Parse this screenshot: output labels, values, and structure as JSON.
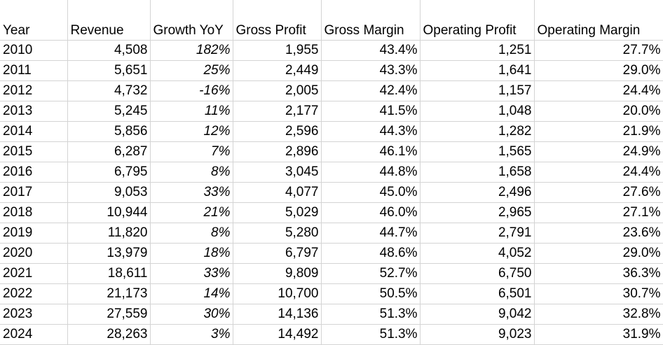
{
  "columns": {
    "year": "Year",
    "revenue": "Revenue",
    "growth": "Growth YoY",
    "gross_profit": "Gross Profit",
    "gross_margin": "Gross Margin",
    "operating_profit": "Operating Profit",
    "operating_margin": "Operating Margin"
  },
  "rows": [
    {
      "year": "2010",
      "revenue": "4,508",
      "growth": "182%",
      "gross_profit": "1,955",
      "gross_margin": "43.4%",
      "operating_profit": "1,251",
      "operating_margin": "27.7%"
    },
    {
      "year": "2011",
      "revenue": "5,651",
      "growth": "25%",
      "gross_profit": "2,449",
      "gross_margin": "43.3%",
      "operating_profit": "1,641",
      "operating_margin": "29.0%"
    },
    {
      "year": "2012",
      "revenue": "4,732",
      "growth": "-16%",
      "gross_profit": "2,005",
      "gross_margin": "42.4%",
      "operating_profit": "1,157",
      "operating_margin": "24.4%"
    },
    {
      "year": "2013",
      "revenue": "5,245",
      "growth": "11%",
      "gross_profit": "2,177",
      "gross_margin": "41.5%",
      "operating_profit": "1,048",
      "operating_margin": "20.0%"
    },
    {
      "year": "2014",
      "revenue": "5,856",
      "growth": "12%",
      "gross_profit": "2,596",
      "gross_margin": "44.3%",
      "operating_profit": "1,282",
      "operating_margin": "21.9%"
    },
    {
      "year": "2015",
      "revenue": "6,287",
      "growth": "7%",
      "gross_profit": "2,896",
      "gross_margin": "46.1%",
      "operating_profit": "1,565",
      "operating_margin": "24.9%"
    },
    {
      "year": "2016",
      "revenue": "6,795",
      "growth": "8%",
      "gross_profit": "3,045",
      "gross_margin": "44.8%",
      "operating_profit": "1,658",
      "operating_margin": "24.4%"
    },
    {
      "year": "2017",
      "revenue": "9,053",
      "growth": "33%",
      "gross_profit": "4,077",
      "gross_margin": "45.0%",
      "operating_profit": "2,496",
      "operating_margin": "27.6%"
    },
    {
      "year": "2018",
      "revenue": "10,944",
      "growth": "21%",
      "gross_profit": "5,029",
      "gross_margin": "46.0%",
      "operating_profit": "2,965",
      "operating_margin": "27.1%"
    },
    {
      "year": "2019",
      "revenue": "11,820",
      "growth": "8%",
      "gross_profit": "5,280",
      "gross_margin": "44.7%",
      "operating_profit": "2,791",
      "operating_margin": "23.6%"
    },
    {
      "year": "2020",
      "revenue": "13,979",
      "growth": "18%",
      "gross_profit": "6,797",
      "gross_margin": "48.6%",
      "operating_profit": "4,052",
      "operating_margin": "29.0%"
    },
    {
      "year": "2021",
      "revenue": "18,611",
      "growth": "33%",
      "gross_profit": "9,809",
      "gross_margin": "52.7%",
      "operating_profit": "6,750",
      "operating_margin": "36.3%"
    },
    {
      "year": "2022",
      "revenue": "21,173",
      "growth": "14%",
      "gross_profit": "10,700",
      "gross_margin": "50.5%",
      "operating_profit": "6,501",
      "operating_margin": "30.7%"
    },
    {
      "year": "2023",
      "revenue": "27,559",
      "growth": "30%",
      "gross_profit": "14,136",
      "gross_margin": "51.3%",
      "operating_profit": "9,042",
      "operating_margin": "32.8%"
    },
    {
      "year": "2024",
      "revenue": "28,263",
      "growth": "3%",
      "gross_profit": "14,492",
      "gross_margin": "51.3%",
      "operating_profit": "9,023",
      "operating_margin": "31.9%"
    }
  ]
}
